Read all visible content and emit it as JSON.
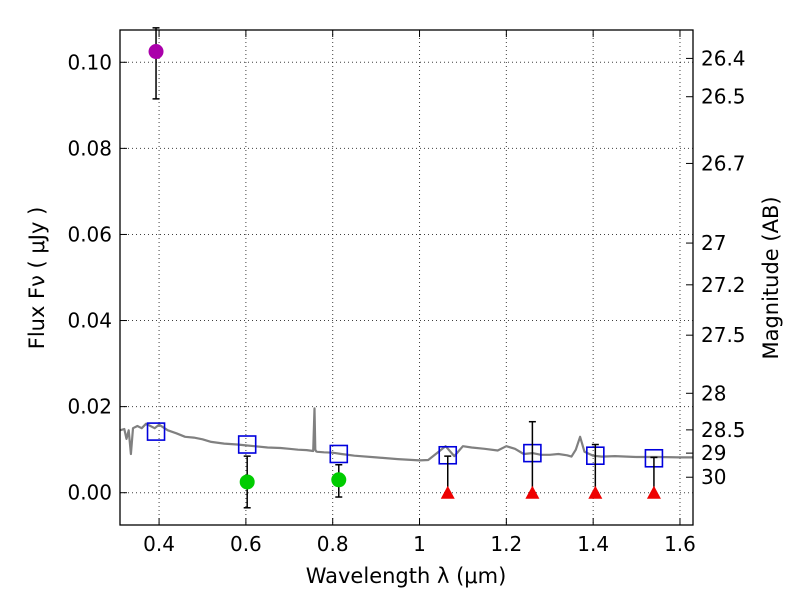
{
  "chart_data": {
    "type": "scatter",
    "title": "",
    "xlabel": "Wavelength  λ (μm)",
    "ylabel": "Flux  Fν  ( μJy )",
    "ylabel_right": "Magnitude (AB)",
    "xlim": [
      0.31,
      1.63
    ],
    "ylim": [
      -0.0075,
      0.1075
    ],
    "grid": true,
    "x_ticks": [
      0.4,
      0.6,
      0.8,
      1.0,
      1.2,
      1.4,
      1.6
    ],
    "x_tick_labels": [
      "0.4",
      "0.6",
      "0.8",
      "1",
      "1.2",
      "1.4",
      "1.6"
    ],
    "y_ticks": [
      0.0,
      0.02,
      0.04,
      0.06,
      0.08,
      0.1
    ],
    "y_tick_labels": [
      "0.00",
      "0.02",
      "0.04",
      "0.06",
      "0.08",
      "0.10"
    ],
    "mag_ticks": [
      {
        "label": "26.4",
        "flux": 0.1009
      },
      {
        "label": "26.5",
        "flux": 0.092
      },
      {
        "label": "26.7",
        "flux": 0.0765
      },
      {
        "label": "27",
        "flux": 0.058
      },
      {
        "label": "27.2",
        "flux": 0.0483
      },
      {
        "label": "27.5",
        "flux": 0.0366
      },
      {
        "label": "28",
        "flux": 0.0231
      },
      {
        "label": "28.5",
        "flux": 0.0146
      },
      {
        "label": "29",
        "flux": 0.0092
      },
      {
        "label": "30",
        "flux": 0.0036
      }
    ],
    "series": [
      {
        "name": "Model spectrum",
        "kind": "line",
        "color": "#808080",
        "x": [
          0.31,
          0.32,
          0.325,
          0.33,
          0.335,
          0.34,
          0.35,
          0.36,
          0.37,
          0.38,
          0.39,
          0.4,
          0.42,
          0.44,
          0.46,
          0.48,
          0.5,
          0.52,
          0.55,
          0.58,
          0.6,
          0.62,
          0.65,
          0.68,
          0.7,
          0.72,
          0.74,
          0.755,
          0.758,
          0.76,
          0.762,
          0.765,
          0.78,
          0.8,
          0.82,
          0.85,
          0.9,
          0.95,
          1.0,
          1.02,
          1.04,
          1.06,
          1.08,
          1.1,
          1.12,
          1.15,
          1.18,
          1.2,
          1.22,
          1.24,
          1.26,
          1.28,
          1.3,
          1.32,
          1.34,
          1.35,
          1.36,
          1.37,
          1.38,
          1.4,
          1.42,
          1.45,
          1.5,
          1.55,
          1.6,
          1.63
        ],
        "y": [
          0.0145,
          0.0148,
          0.0125,
          0.0145,
          0.009,
          0.015,
          0.0155,
          0.015,
          0.016,
          0.0155,
          0.015,
          0.0158,
          0.0145,
          0.0138,
          0.013,
          0.0128,
          0.0124,
          0.0118,
          0.0114,
          0.0112,
          0.011,
          0.0108,
          0.0105,
          0.0104,
          0.0102,
          0.01,
          0.0099,
          0.0097,
          0.0196,
          0.01,
          0.0096,
          0.0095,
          0.0094,
          0.0093,
          0.009,
          0.0086,
          0.0082,
          0.0078,
          0.0075,
          0.0076,
          0.0092,
          0.0108,
          0.0085,
          0.0108,
          0.0105,
          0.0102,
          0.0098,
          0.0108,
          0.0102,
          0.009,
          0.0092,
          0.0088,
          0.0088,
          0.009,
          0.0087,
          0.0084,
          0.01,
          0.013,
          0.0095,
          0.0086,
          0.0084,
          0.0085,
          0.0083,
          0.0083,
          0.0082,
          0.0082
        ]
      },
      {
        "name": "Model photometry",
        "kind": "open-square",
        "color": "#0000dd",
        "x": [
          0.393,
          0.603,
          0.814,
          1.065,
          1.26,
          1.405,
          1.54
        ],
        "y": [
          0.0142,
          0.0112,
          0.009,
          0.0087,
          0.0092,
          0.0086,
          0.008
        ]
      },
      {
        "name": "Detected (high)",
        "kind": "circle",
        "color": "#aa00aa",
        "x": [
          0.393
        ],
        "y": [
          0.1025
        ],
        "yerr_low": [
          0.0915
        ],
        "yerr_high": [
          0.108
        ]
      },
      {
        "name": "Detections",
        "kind": "circle",
        "color": "#00cc00",
        "x": [
          0.603,
          0.814
        ],
        "y": [
          0.0025,
          0.003
        ],
        "yerr_low": [
          -0.0035,
          -0.001
        ],
        "yerr_high": [
          0.0085,
          0.0065
        ]
      },
      {
        "name": "Upper limits",
        "kind": "triangle",
        "color": "#ee0000",
        "x": [
          1.065,
          1.26,
          1.405,
          1.54
        ],
        "y": [
          0.0,
          0.0,
          0.0,
          0.0
        ],
        "yerr_low": [
          0.0,
          0.0,
          0.0,
          0.0
        ],
        "yerr_high": [
          0.0085,
          0.0165,
          0.0112,
          0.0082
        ]
      }
    ]
  }
}
